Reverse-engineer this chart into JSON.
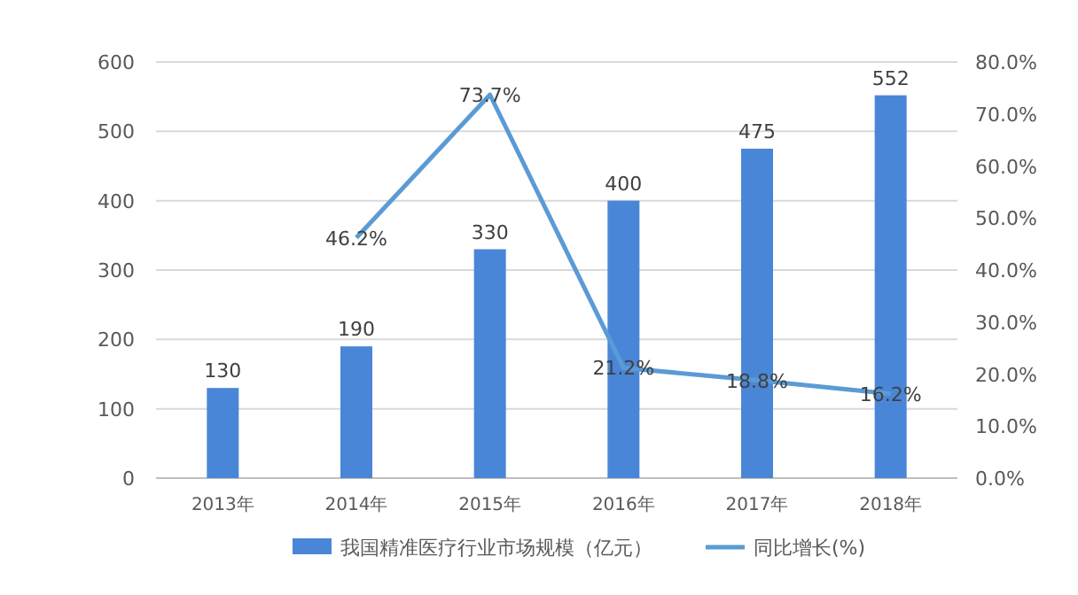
{
  "chart_data": {
    "type": "bar",
    "categories": [
      "2013年",
      "2014年",
      "2015年",
      "2016年",
      "2017年",
      "2018年"
    ],
    "series": [
      {
        "name": "我国精准医疗行业市场规模（亿元）",
        "color": "#4a86d8",
        "values": [
          130,
          190,
          330,
          400,
          475,
          552
        ],
        "value_labels": [
          "130",
          "190",
          "330",
          "400",
          "475",
          "552"
        ]
      },
      {
        "name": "同比增长(%)",
        "type": "line",
        "axis": "y2",
        "color": "#5b9bd5",
        "values": [
          null,
          46.2,
          73.7,
          21.2,
          18.8,
          16.2
        ],
        "value_labels": [
          null,
          "46.2%",
          "73.7%",
          "21.2%",
          "18.8%",
          "16.2%"
        ]
      }
    ],
    "ylim": [
      0,
      600
    ],
    "yticks": [
      0,
      100,
      200,
      300,
      400,
      500,
      600
    ],
    "y2lim": [
      0,
      80
    ],
    "y2ticks": [
      {
        "value": 0,
        "label": "0.0%"
      },
      {
        "value": 10,
        "label": "10.0%"
      },
      {
        "value": 20,
        "label": "20.0%"
      },
      {
        "value": 30,
        "label": "30.0%"
      },
      {
        "value": 40,
        "label": "40.0%"
      },
      {
        "value": 50,
        "label": "50.0%"
      },
      {
        "value": 60,
        "label": "60.0%"
      },
      {
        "value": 70,
        "label": "70.0%"
      },
      {
        "value": 80,
        "label": "80.0%"
      }
    ],
    "grid": "y",
    "legend": "bottom",
    "marker": "none"
  }
}
